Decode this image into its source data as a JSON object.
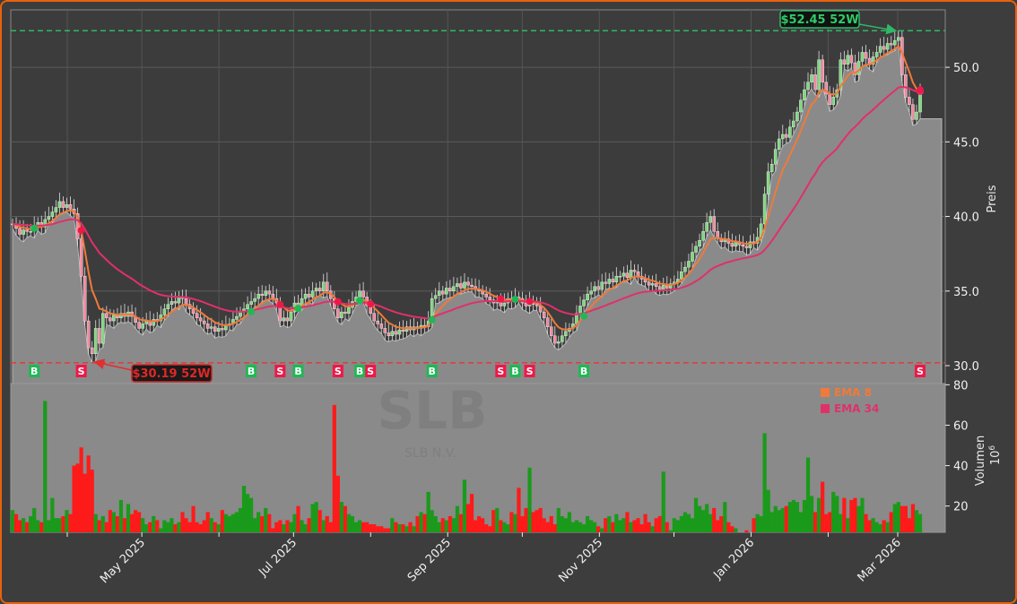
{
  "chart_data": {
    "type": "candlestick",
    "ticker": "SLB",
    "company": "SLB N.V.",
    "x_range": [
      "2025-03-10",
      "2026-03-10"
    ],
    "x_ticks": [
      {
        "date": "2025-05-01",
        "label": "May 2025"
      },
      {
        "date": "2025-07-01",
        "label": "Jul 2025"
      },
      {
        "date": "2025-09-01",
        "label": "Sep 2025"
      },
      {
        "date": "2025-11-01",
        "label": "Nov 2025"
      },
      {
        "date": "2026-01-01",
        "label": "Jan 2026"
      },
      {
        "date": "2026-03-01",
        "label": "Mar 2026"
      }
    ],
    "x_minor_ticks": [
      "2025-04-01",
      "2025-06-01",
      "2025-08-01",
      "2025-10-01",
      "2025-12-01",
      "2026-02-01"
    ],
    "price_axis": {
      "label": "Preis",
      "ylim": [
        28.8,
        53.85
      ],
      "ticks": [
        30.0,
        35.0,
        40.0,
        45.0,
        50.0
      ],
      "grid": true
    },
    "volume_axis": {
      "label": "Volumen",
      "unit": "10^6",
      "ylim": [
        7,
        80.6
      ],
      "ticks": [
        20,
        40,
        60,
        80
      ]
    },
    "close": [
      39.5,
      39.2,
      38.8,
      39.1,
      39.0,
      39.0,
      39.4,
      39.6,
      39.3,
      39.8,
      40.0,
      40.3,
      40.6,
      41.0,
      40.6,
      40.8,
      40.5,
      40.2,
      38.5,
      36.0,
      33.0,
      31.2,
      30.8,
      32.5,
      31.5,
      33.5,
      33.2,
      33.0,
      33.4,
      33.2,
      33.5,
      33.3,
      33.6,
      33.3,
      32.9,
      32.5,
      32.8,
      33.0,
      32.7,
      33.1,
      33.0,
      33.4,
      33.8,
      34.1,
      34.3,
      34.2,
      34.6,
      34.5,
      34.1,
      33.8,
      33.5,
      33.2,
      33.0,
      32.8,
      32.5,
      32.6,
      32.3,
      32.5,
      32.4,
      32.7,
      32.8,
      33.1,
      33.3,
      33.6,
      33.8,
      34.1,
      34.3,
      34.5,
      34.8,
      34.7,
      35.0,
      34.8,
      34.5,
      34.2,
      33.0,
      33.2,
      33.0,
      33.6,
      34.2,
      34.0,
      34.5,
      34.8,
      34.6,
      35.0,
      35.2,
      35.0,
      35.6,
      35.0,
      34.5,
      33.8,
      33.2,
      33.6,
      33.5,
      33.9,
      34.3,
      34.6,
      35.0,
      34.6,
      34.0,
      33.5,
      33.0,
      32.8,
      32.5,
      32.2,
      32.0,
      32.3,
      32.1,
      32.4,
      32.3,
      32.6,
      32.4,
      32.6,
      32.5,
      32.7,
      32.6,
      33.0,
      34.5,
      34.7,
      35.0,
      34.8,
      35.2,
      35.0,
      35.3,
      35.5,
      35.2,
      35.6,
      35.4,
      35.3,
      35.1,
      35.0,
      34.8,
      34.6,
      34.4,
      34.2,
      34.3,
      34.0,
      34.2,
      34.5,
      34.3,
      34.6,
      34.5,
      34.2,
      34.0,
      34.3,
      34.1,
      34.0,
      33.6,
      33.2,
      32.6,
      32.0,
      31.5,
      31.6,
      32.0,
      32.3,
      32.5,
      32.8,
      33.5,
      34.0,
      34.4,
      34.8,
      35.0,
      35.3,
      35.1,
      35.6,
      35.5,
      35.8,
      35.6,
      36.0,
      36.0,
      36.2,
      35.9,
      36.4,
      36.3,
      36.0,
      35.8,
      35.6,
      35.4,
      35.5,
      35.3,
      35.1,
      35.4,
      35.2,
      35.5,
      35.6,
      35.8,
      36.3,
      36.6,
      37.0,
      37.6,
      38.0,
      38.4,
      39.0,
      39.6,
      40.0,
      39.0,
      38.5,
      38.3,
      38.5,
      38.2,
      38.0,
      38.3,
      38.1,
      38.0,
      37.9,
      38.3,
      38.2,
      38.6,
      39.5,
      41.5,
      43.0,
      43.5,
      44.5,
      45.2,
      45.5,
      45.3,
      46.0,
      46.4,
      47.0,
      47.8,
      48.5,
      49.0,
      49.5,
      48.5,
      50.5,
      49.0,
      48.2,
      47.5,
      48.0,
      48.5,
      50.5,
      50.2,
      50.8,
      50.3,
      49.5,
      50.4,
      51.0,
      50.6,
      50.2,
      50.7,
      51.0,
      51.4,
      51.2,
      51.6,
      51.5,
      51.8,
      52.0,
      49.5,
      48.0,
      47.5,
      46.5,
      47.0,
      48.3
    ],
    "volume": [
      18,
      16,
      13,
      14,
      12,
      15,
      19,
      13,
      12,
      72,
      13,
      24,
      14,
      14,
      15,
      18,
      16,
      40,
      41,
      49,
      36,
      45,
      38,
      16,
      13,
      15,
      12,
      18,
      17,
      15,
      23,
      14,
      21,
      16,
      18,
      17,
      14,
      11,
      12,
      15,
      13,
      9,
      13,
      12,
      14,
      11,
      12,
      17,
      14,
      12,
      20,
      12,
      11,
      13,
      17,
      14,
      12,
      11,
      18,
      16,
      15,
      16,
      17,
      19,
      30,
      26,
      24,
      14,
      17,
      15,
      19,
      16,
      9,
      12,
      13,
      11,
      13,
      12,
      16,
      20,
      13,
      11,
      14,
      21,
      22,
      18,
      13,
      15,
      12,
      70,
      35,
      22,
      20,
      16,
      15,
      12,
      13,
      12,
      12,
      11,
      11,
      10,
      10,
      9,
      9,
      14,
      12,
      11,
      11,
      10,
      12,
      10,
      15,
      17,
      16,
      27,
      18,
      15,
      12,
      14,
      13,
      15,
      14,
      20,
      16,
      33,
      21,
      26,
      13,
      15,
      14,
      11,
      10,
      18,
      19,
      13,
      12,
      11,
      17,
      16,
      29,
      15,
      19,
      39,
      17,
      18,
      19,
      14,
      12,
      15,
      11,
      19,
      15,
      14,
      17,
      12,
      13,
      12,
      11,
      15,
      13,
      12,
      10,
      9,
      14,
      15,
      12,
      16,
      13,
      14,
      17,
      12,
      13,
      14,
      11,
      16,
      12,
      10,
      14,
      15,
      37,
      12,
      8,
      14,
      13,
      15,
      17,
      16,
      14,
      24,
      20,
      18,
      21,
      16,
      19,
      13,
      15,
      22,
      12,
      10,
      9,
      6,
      5,
      8,
      7,
      14,
      16,
      15,
      56,
      28,
      17,
      20,
      18,
      19,
      20,
      22,
      23,
      22,
      17,
      23,
      44,
      25,
      17,
      24,
      32,
      16,
      17,
      27,
      25,
      16,
      24,
      14,
      23,
      24,
      20,
      24,
      16,
      13,
      14,
      12,
      11,
      13,
      12,
      17,
      21,
      22,
      20,
      20,
      14,
      21,
      18,
      16
    ],
    "series": [
      {
        "name": "EMA 8",
        "period": 8,
        "color": "#f07a3a"
      },
      {
        "name": "EMA 34",
        "period": 34,
        "color": "#e0306a"
      }
    ],
    "signals": [
      {
        "type": "B",
        "bar": 6
      },
      {
        "type": "S",
        "bar": 19
      },
      {
        "type": "B",
        "bar": 66
      },
      {
        "type": "S",
        "bar": 74
      },
      {
        "type": "B",
        "bar": 79
      },
      {
        "type": "S",
        "bar": 90
      },
      {
        "type": "B",
        "bar": 96
      },
      {
        "type": "S",
        "bar": 99
      },
      {
        "type": "B",
        "bar": 116
      },
      {
        "type": "S",
        "bar": 135
      },
      {
        "type": "B",
        "bar": 139
      },
      {
        "type": "S",
        "bar": 143
      },
      {
        "type": "B",
        "bar": 158
      },
      {
        "type": "S",
        "bar": 251
      }
    ],
    "annotations": {
      "high_52w": {
        "value": 52.45,
        "label": "$52.45 52W",
        "bar": 245
      },
      "low_52w": {
        "value": 30.19,
        "label": "$30.19 52W",
        "bar": 22
      }
    },
    "legend": {
      "placement": "top-right of volume panel",
      "entries": [
        "EMA 8",
        "EMA 34"
      ]
    },
    "colors": {
      "up": "#1a9a1a",
      "down": "#ff1a1a",
      "buy": "#1db954",
      "sell": "#ee1848",
      "frame": "#e8620c",
      "area": "#8a8a8a"
    }
  }
}
